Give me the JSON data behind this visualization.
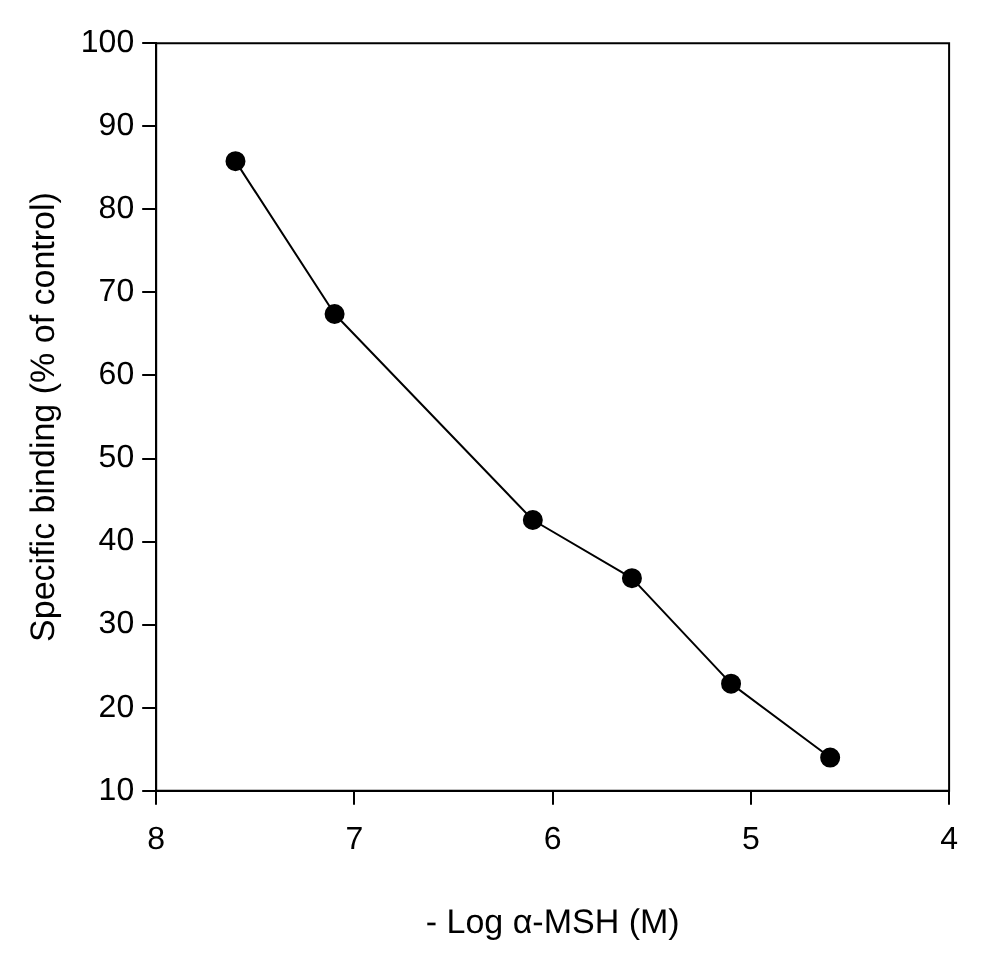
{
  "chart_data": {
    "type": "line",
    "xlabel": "- Log α-MSH (M)",
    "ylabel": "Specific binding (% of control)",
    "x": [
      7.6,
      7.1,
      6.1,
      5.6,
      5.1,
      4.6
    ],
    "series": [
      {
        "color": "#000000",
        "values": [
          85.8,
          67.4,
          42.6,
          35.6,
          22.9,
          14.0
        ]
      }
    ],
    "xlim": [
      8,
      4
    ],
    "xticks": [
      8,
      7,
      6,
      5,
      4
    ],
    "ylim": [
      10,
      100
    ],
    "yticks": [
      10,
      20,
      30,
      40,
      50,
      60,
      70,
      80,
      90,
      100
    ],
    "grid": false,
    "legend": false,
    "marker": "circle",
    "line_style": "solid"
  }
}
